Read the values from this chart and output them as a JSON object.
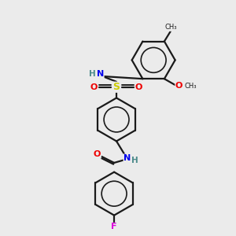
{
  "background_color": "#ebebeb",
  "bond_color": "#1a1a1a",
  "atom_colors": {
    "N": "#0000ee",
    "O": "#ee0000",
    "S": "#cccc00",
    "F": "#dd00dd",
    "C": "#1a1a1a",
    "H": "#4a8a8a"
  },
  "figsize": [
    3.0,
    3.0
  ],
  "dpi": 100,
  "ring_r": 28,
  "lw": 1.6
}
